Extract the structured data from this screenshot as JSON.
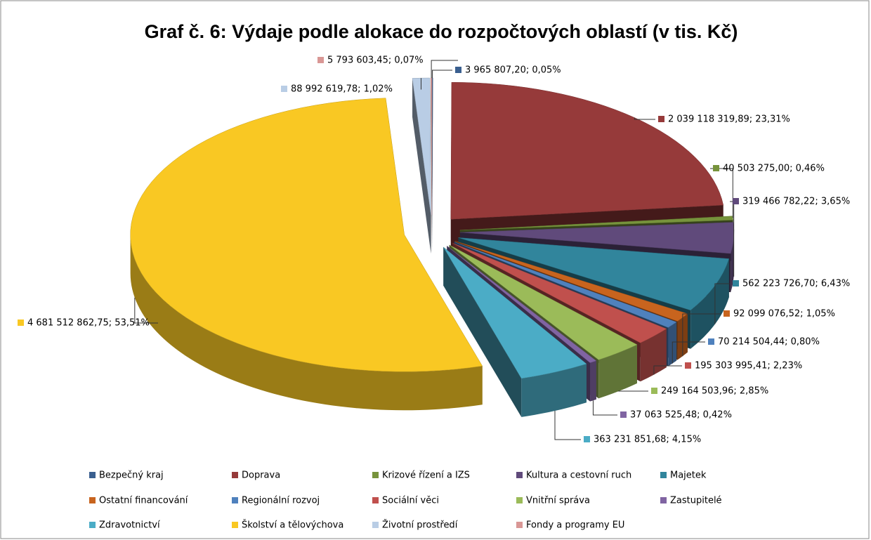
{
  "chart_data": {
    "type": "pie",
    "title": "Graf č. 6: Výdaje podle alokace do rozpočtových oblastí (v tis. Kč)",
    "categories": [
      "Bezpečný kraj",
      "Doprava",
      "Krizové řízení a IZS",
      "Kultura a cestovní ruch",
      "Majetek",
      "Ostatní financování",
      "Regionální rozvoj",
      "Sociální věci",
      "Vnitřní správa",
      "Zastupitelé",
      "Zdravotnictví",
      "Školství a tělovýchova",
      "Životní prostředí",
      "Fondy a programy EU"
    ],
    "values": [
      3965807.2,
      2039118319.89,
      40503275.0,
      319466782.22,
      562223726.7,
      92099076.52,
      70214504.44,
      195303995.41,
      249164503.96,
      37063525.48,
      363231851.68,
      4681512862.75,
      88992619.78,
      5793603.45
    ],
    "value_labels": [
      "3 965 807,20; 0,05%",
      "2 039 118 319,89; 23,31%",
      "40 503 275,00; 0,46%",
      "319 466 782,22; 3,65%",
      "562 223 726,70; 6,43%",
      "92 099 076,52; 1,05%",
      "70 214 504,44; 0,80%",
      "195 303 995,41; 2,23%",
      "249 164 503,96; 2,85%",
      "37 063 525,48; 0,42%",
      "363 231 851,68; 4,15%",
      "4 681 512 862,75; 53,51%",
      "88 992 619,78; 1,02%",
      "5 793 603,45; 0,07%"
    ],
    "colors": [
      "#3a5f8f",
      "#963a3a",
      "#77933c",
      "#604a7b",
      "#31859c",
      "#c8641e",
      "#4f81bd",
      "#c0504d",
      "#9bbb59",
      "#8064a2",
      "#4bacc6",
      "#f9c823",
      "#b9cde5",
      "#d99795"
    ]
  }
}
